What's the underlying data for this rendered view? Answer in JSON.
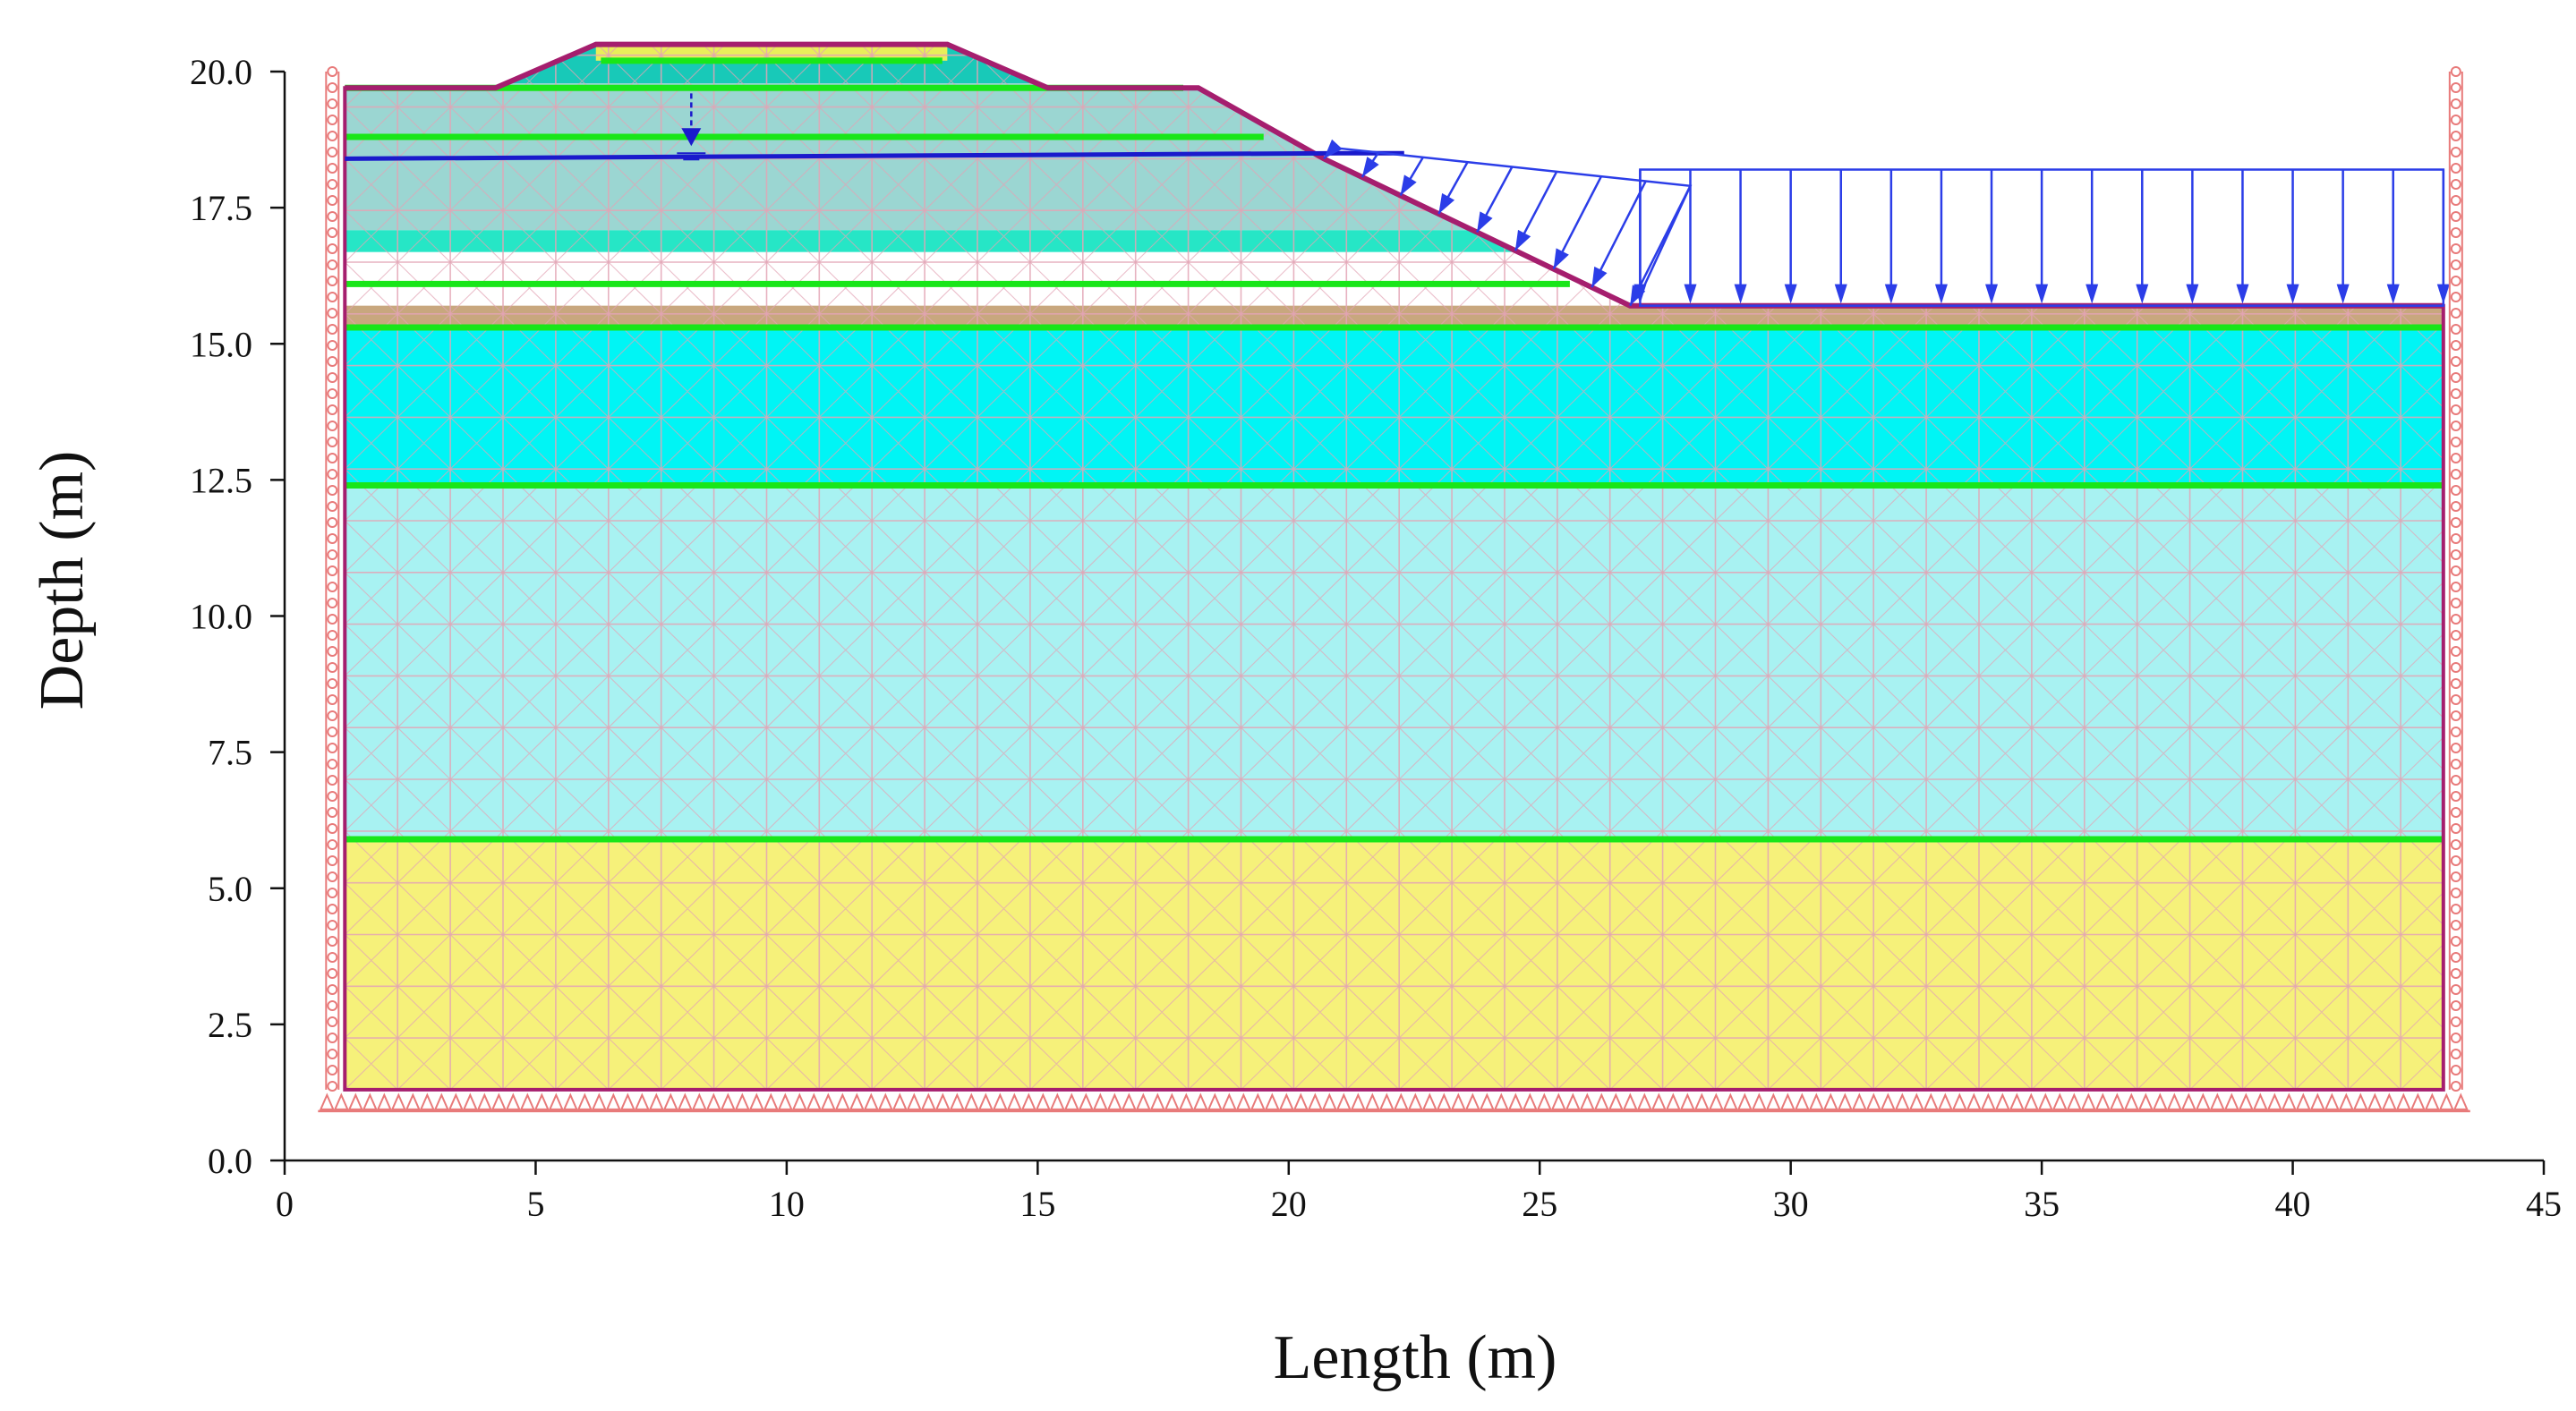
{
  "chart_data": {
    "type": "finite-element-mesh",
    "xlabel": "Length (m)",
    "ylabel": "Depth (m)",
    "xlim": [
      0,
      45
    ],
    "ylim": [
      0,
      20
    ],
    "x_ticks": [
      0,
      5,
      10,
      15,
      20,
      25,
      30,
      35,
      40,
      45
    ],
    "x_tick_labels": [
      "0",
      "5",
      "10",
      "15",
      "20",
      "25",
      "30",
      "35",
      "40",
      "45"
    ],
    "y_ticks": [
      0,
      2.5,
      5,
      7.5,
      10,
      12.5,
      15,
      17.5,
      20
    ],
    "y_tick_labels": [
      "0.0",
      "2.5",
      "5.0",
      "7.5",
      "10.0",
      "12.5",
      "15.0",
      "17.5",
      "20.0"
    ],
    "model_extent": {
      "x": [
        1.2,
        43.0
      ],
      "y": [
        1.3,
        15.7
      ]
    },
    "ground_surface": [
      [
        1.2,
        19.7
      ],
      [
        4.2,
        19.7
      ],
      [
        6.2,
        20.5
      ],
      [
        13.2,
        20.5
      ],
      [
        15.2,
        19.7
      ],
      [
        18.2,
        19.7
      ],
      [
        20.7,
        18.4
      ],
      [
        26.8,
        15.7
      ],
      [
        43.0,
        15.7
      ]
    ],
    "water_table": [
      [
        1.2,
        18.4
      ],
      [
        21.0,
        18.5
      ],
      [
        22.3,
        18.5
      ]
    ],
    "layers": [
      {
        "top": 15.7,
        "bottom": 15.3,
        "color": "#c8a77e"
      },
      {
        "top": 15.3,
        "bottom": 12.4,
        "color": "#00f5f5"
      },
      {
        "top": 12.4,
        "bottom": 5.9,
        "color": "#a8f2f2"
      },
      {
        "top": 5.9,
        "bottom": 1.3,
        "color": "#f6f17a"
      }
    ],
    "embankment_bands": [
      {
        "top": 19.7,
        "bottom": 18.8,
        "color": "#18c9b8"
      },
      {
        "top": 18.8,
        "bottom": 16.1,
        "color": "#9bd6d2"
      },
      {
        "top": 16.1,
        "bottom": 15.7,
        "color": "#26e6c6"
      }
    ],
    "surcharge_load": {
      "x": [
        27.0,
        43.0
      ],
      "top": 18.2,
      "bottom": 15.7
    },
    "slope_load": {
      "x": [
        20.9,
        28.0
      ]
    },
    "colors": {
      "mesh": "#e3a4b5",
      "boundary": "#a51e6e",
      "interface": "#19e619",
      "water": "#1a1acc",
      "load": "#2b3de8",
      "support": "#e87a7a"
    }
  }
}
